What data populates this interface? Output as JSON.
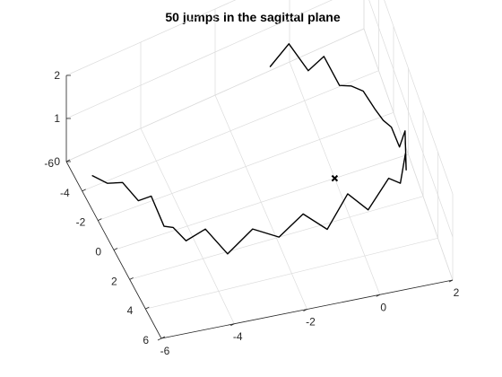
{
  "chart_data": {
    "type": "line",
    "projection": "3d",
    "title": "50 jumps in the sagittal plane",
    "xlabel": "",
    "ylabel": "",
    "zlabel": "",
    "x_ticks": [
      "-6",
      "-4",
      "-2",
      "0",
      "2",
      "4",
      "6"
    ],
    "y_ticks": [
      "2",
      "0",
      "-2",
      "-4",
      "-6"
    ],
    "z_ticks": [
      "0",
      "1",
      "2"
    ],
    "x_range": [
      -6,
      6
    ],
    "y_range": [
      -6,
      2
    ],
    "z_range": [
      0,
      2
    ],
    "grid": true,
    "marker": {
      "symbol": "x",
      "x": 0,
      "y": 0,
      "z": 0
    },
    "series": [
      {
        "color": "#000000",
        "x": [
          -2.7,
          -2.2,
          -1.7,
          -1.1,
          -0.4,
          0.3,
          1.0,
          1.7,
          2.3,
          2.8,
          3.2,
          3.3,
          3.1,
          2.9,
          2.7,
          2.5,
          2.3,
          1.9,
          1.6,
          1.2,
          0.8,
          0.3,
          -0.3,
          -0.9,
          -1.5,
          -2.1,
          -2.7,
          -3.3,
          -3.9,
          -4.5,
          -5.1,
          -5.6
        ],
        "y": [
          -6.0,
          -5.7,
          -5.4,
          -5.1,
          -4.9,
          -4.7,
          -4.6,
          -4.4,
          -4.0,
          -3.5,
          -2.9,
          -2.2,
          -1.5,
          -0.8,
          -0.2,
          0.4,
          1.0,
          1.4,
          1.6,
          1.7,
          1.75,
          1.7,
          1.6,
          1.5,
          1.4,
          1.2,
          1.0,
          0.8,
          0.5,
          0.2,
          -0.2,
          -0.6
        ],
        "z": [
          0.8,
          0.7,
          0.8,
          0.5,
          0.8,
          0.3,
          0.5,
          0.4,
          0.8,
          0.3,
          0.9,
          0.6,
          0.9,
          0.3,
          0.9,
          0.3,
          0.8,
          0.4,
          0.9,
          0.3,
          1.0,
          0.4,
          0.6,
          0.5,
          0.5,
          0.7,
          0.6,
          0.4,
          0.9,
          0.4,
          0.9,
          0.3
        ],
        "dense_clusters_at_index": [
          3,
          4,
          12,
          13,
          20,
          21
        ]
      }
    ]
  }
}
